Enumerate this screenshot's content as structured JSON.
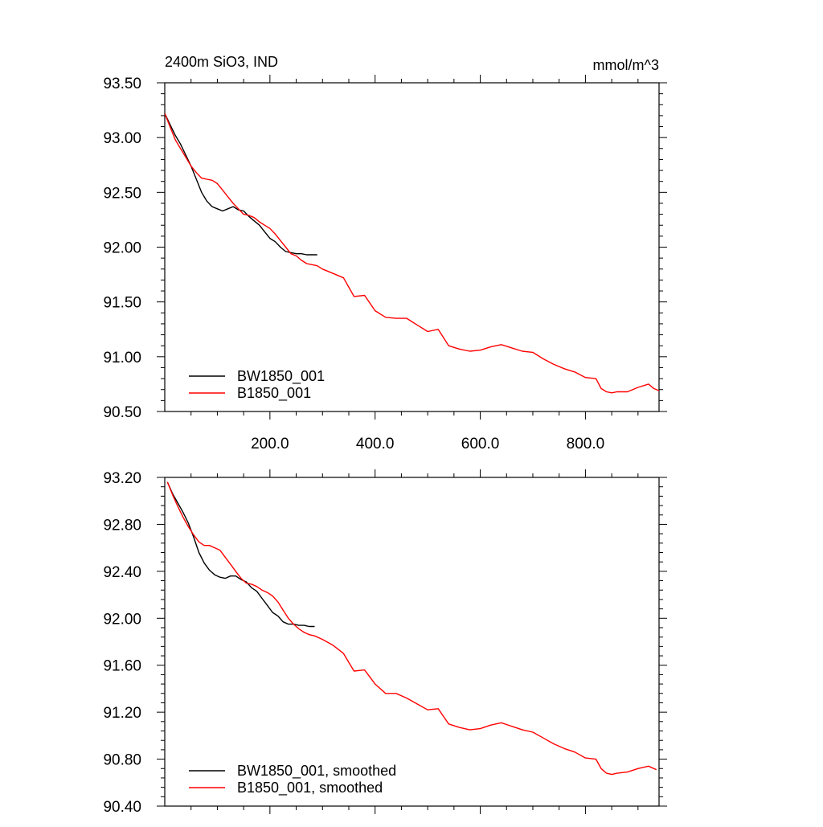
{
  "chart_data": [
    {
      "type": "line",
      "title": "2400m SiO3, IND",
      "units": "mmol/m^3",
      "xlabel": "",
      "ylabel": "",
      "xlim": [
        0,
        940
      ],
      "ylim": [
        90.5,
        93.5
      ],
      "xticks": [
        200,
        400,
        600,
        800
      ],
      "xtick_labels": [
        "200.0",
        "400.0",
        "600.0",
        "800.0"
      ],
      "yticks": [
        90.5,
        91.0,
        91.5,
        92.0,
        92.5,
        93.0,
        93.5
      ],
      "ytick_labels": [
        "90.50",
        "91.00",
        "91.50",
        "92.00",
        "92.50",
        "93.00",
        "93.50"
      ],
      "grid": false,
      "legend": "bottom-left",
      "series": [
        {
          "name": "BW1850_001",
          "color": "#000000",
          "x": [
            0,
            10,
            20,
            30,
            40,
            50,
            60,
            70,
            80,
            90,
            100,
            110,
            120,
            130,
            140,
            150,
            160,
            170,
            180,
            190,
            200,
            210,
            220,
            230,
            240,
            250,
            260,
            270,
            280,
            290
          ],
          "y": [
            93.22,
            93.12,
            93.02,
            92.94,
            92.84,
            92.74,
            92.62,
            92.5,
            92.42,
            92.37,
            92.35,
            92.33,
            92.35,
            92.37,
            92.34,
            92.33,
            92.28,
            92.24,
            92.2,
            92.14,
            92.08,
            92.05,
            92.0,
            91.96,
            91.95,
            91.94,
            91.94,
            91.93,
            91.93,
            91.93
          ]
        },
        {
          "name": "B1850_001",
          "color": "#ff0000",
          "x": [
            0,
            10,
            20,
            30,
            40,
            50,
            60,
            70,
            80,
            90,
            100,
            110,
            120,
            130,
            140,
            150,
            160,
            170,
            180,
            190,
            200,
            210,
            220,
            230,
            240,
            250,
            260,
            270,
            280,
            290,
            300,
            320,
            340,
            360,
            380,
            400,
            420,
            440,
            460,
            480,
            500,
            520,
            540,
            560,
            580,
            600,
            620,
            640,
            660,
            680,
            700,
            720,
            740,
            760,
            780,
            800,
            820,
            830,
            840,
            850,
            860,
            880,
            900,
            920,
            930,
            940
          ],
          "y": [
            93.22,
            93.1,
            92.98,
            92.9,
            92.82,
            92.74,
            92.68,
            92.63,
            92.62,
            92.61,
            92.58,
            92.52,
            92.46,
            92.4,
            92.35,
            92.3,
            92.29,
            92.27,
            92.23,
            92.2,
            92.17,
            92.12,
            92.06,
            92.0,
            91.94,
            91.92,
            91.88,
            91.85,
            91.84,
            91.83,
            91.8,
            91.76,
            91.72,
            91.55,
            91.56,
            91.42,
            91.36,
            91.35,
            91.35,
            91.29,
            91.23,
            91.25,
            91.1,
            91.07,
            91.05,
            91.06,
            91.09,
            91.11,
            91.08,
            91.05,
            91.04,
            90.98,
            90.93,
            90.89,
            90.86,
            90.81,
            90.8,
            90.71,
            90.68,
            90.67,
            90.68,
            90.68,
            90.72,
            90.75,
            90.71,
            90.69
          ]
        }
      ]
    },
    {
      "type": "line",
      "title": "",
      "xlabel": "",
      "ylabel": "",
      "xlim": [
        0,
        940
      ],
      "ylim": [
        90.4,
        93.2
      ],
      "xticks": [
        200,
        400,
        600,
        800
      ],
      "yticks": [
        90.4,
        90.8,
        91.2,
        91.6,
        92.0,
        92.4,
        92.8,
        93.2
      ],
      "ytick_labels": [
        "90.40",
        "90.80",
        "91.20",
        "91.60",
        "92.00",
        "92.40",
        "92.80",
        "93.20"
      ],
      "grid": false,
      "legend": "bottom-left",
      "series": [
        {
          "name": "BW1850_001, smoothed",
          "color": "#000000",
          "x": [
            5,
            15,
            25,
            35,
            45,
            55,
            65,
            75,
            85,
            95,
            105,
            115,
            125,
            135,
            145,
            155,
            165,
            175,
            185,
            195,
            205,
            215,
            225,
            235,
            245,
            255,
            265,
            275,
            285
          ],
          "y": [
            93.16,
            93.06,
            92.98,
            92.9,
            92.81,
            92.69,
            92.56,
            92.47,
            92.41,
            92.37,
            92.35,
            92.34,
            92.36,
            92.36,
            92.33,
            92.31,
            92.26,
            92.23,
            92.17,
            92.11,
            92.05,
            92.02,
            91.97,
            91.95,
            91.95,
            91.94,
            91.94,
            91.93,
            91.93
          ]
        },
        {
          "name": "B1850_001, smoothed",
          "color": "#ff0000",
          "x": [
            5,
            15,
            25,
            35,
            45,
            55,
            65,
            75,
            85,
            95,
            105,
            115,
            125,
            135,
            145,
            155,
            165,
            175,
            185,
            195,
            205,
            215,
            225,
            235,
            245,
            255,
            265,
            275,
            285,
            300,
            320,
            340,
            360,
            380,
            400,
            420,
            440,
            460,
            480,
            500,
            520,
            540,
            560,
            580,
            600,
            620,
            640,
            660,
            680,
            700,
            720,
            740,
            760,
            780,
            800,
            820,
            830,
            840,
            850,
            860,
            880,
            900,
            920,
            935
          ],
          "y": [
            93.16,
            93.05,
            92.95,
            92.86,
            92.78,
            92.71,
            92.65,
            92.62,
            92.62,
            92.6,
            92.58,
            92.52,
            92.46,
            92.4,
            92.34,
            92.3,
            92.29,
            92.27,
            92.24,
            92.22,
            92.19,
            92.14,
            92.07,
            92.0,
            91.95,
            91.91,
            91.88,
            91.86,
            91.85,
            91.82,
            91.77,
            91.7,
            91.55,
            91.56,
            91.44,
            91.36,
            91.36,
            91.32,
            91.27,
            91.22,
            91.23,
            91.1,
            91.07,
            91.05,
            91.06,
            91.09,
            91.11,
            91.08,
            91.05,
            91.03,
            90.98,
            90.93,
            90.89,
            90.86,
            90.81,
            90.8,
            90.72,
            90.68,
            90.67,
            90.68,
            90.69,
            90.72,
            90.74,
            90.71
          ]
        }
      ]
    }
  ]
}
